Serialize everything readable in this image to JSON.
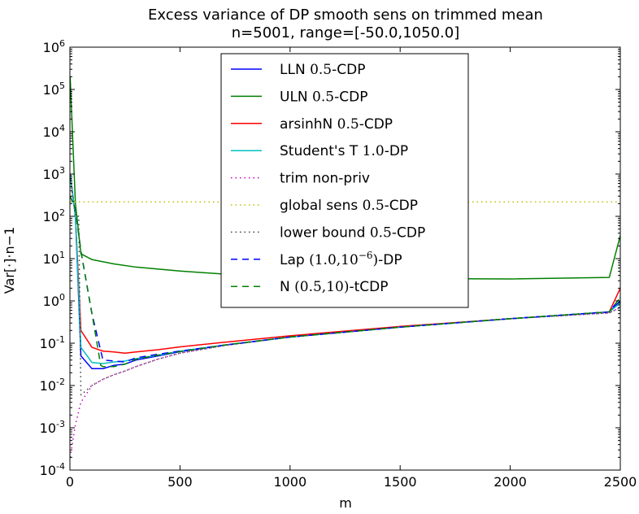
{
  "chart_data": {
    "type": "line",
    "title": "Excess variance of DP smooth sens on trimmed mean",
    "subtitle": "n=5001, range=[-50.0,1050.0]",
    "xlabel": "m",
    "ylabel": "Var[·]·n−1",
    "xlim": [
      0,
      2500
    ],
    "ylim": [
      0.0001,
      1000000
    ],
    "yscale": "log",
    "grid": false,
    "legend_position": "top-center",
    "xticks": [
      {
        "value": 0,
        "label": "0"
      },
      {
        "value": 500,
        "label": "500"
      },
      {
        "value": 1000,
        "label": "1000"
      },
      {
        "value": 1500,
        "label": "1500"
      },
      {
        "value": 2000,
        "label": "2000"
      },
      {
        "value": 2500,
        "label": "2500"
      }
    ],
    "yticks": [
      {
        "value": 0.0001,
        "base": "10",
        "exp": "-4"
      },
      {
        "value": 0.001,
        "base": "10",
        "exp": "-3"
      },
      {
        "value": 0.01,
        "base": "10",
        "exp": "-2"
      },
      {
        "value": 0.1,
        "base": "10",
        "exp": "-1"
      },
      {
        "value": 1,
        "base": "10",
        "exp": "0"
      },
      {
        "value": 10,
        "base": "10",
        "exp": "1"
      },
      {
        "value": 100,
        "base": "10",
        "exp": "2"
      },
      {
        "value": 1000,
        "base": "10",
        "exp": "3"
      },
      {
        "value": 10000,
        "base": "10",
        "exp": "4"
      },
      {
        "value": 100000,
        "base": "10",
        "exp": "5"
      },
      {
        "value": 1000000,
        "base": "10",
        "exp": "6"
      }
    ],
    "series": [
      {
        "name": "LLN 0.5-CDP",
        "label_plain": "LLN ",
        "label_math": "0.5",
        "label_tail": "-CDP",
        "color": "#0000ff",
        "dash": "solid",
        "x": [
          1,
          25,
          50,
          100,
          150,
          200,
          250,
          300,
          400,
          500,
          700,
          1000,
          1500,
          2000,
          2450,
          2500
        ],
        "y": [
          1000,
          100,
          0.05,
          0.025,
          0.025,
          0.03,
          0.032,
          0.04,
          0.05,
          0.063,
          0.09,
          0.14,
          0.24,
          0.38,
          0.55,
          1.0
        ]
      },
      {
        "name": "ULN 0.5-CDP",
        "label_plain": "ULN ",
        "label_math": "0.5",
        "label_tail": "-CDP",
        "color": "#008000",
        "dash": "solid",
        "x": [
          1,
          25,
          50,
          100,
          200,
          300,
          500,
          700,
          1000,
          1500,
          2000,
          2450,
          2500
        ],
        "y": [
          200000,
          200,
          13,
          9.5,
          7.5,
          6.3,
          5.1,
          4.3,
          3.8,
          3.4,
          3.3,
          3.6,
          35
        ]
      },
      {
        "name": "arsinhN 0.5-CDP",
        "label_plain": "arsinhN ",
        "label_math": "0.5",
        "label_tail": "-CDP",
        "color": "#ff0000",
        "dash": "solid",
        "x": [
          1,
          25,
          50,
          100,
          150,
          200,
          250,
          300,
          400,
          500,
          700,
          1000,
          1500,
          2000,
          2450,
          2500
        ],
        "y": [
          1000,
          100,
          0.2,
          0.08,
          0.065,
          0.062,
          0.058,
          0.062,
          0.07,
          0.082,
          0.105,
          0.15,
          0.25,
          0.38,
          0.55,
          2.0
        ]
      },
      {
        "name": "Student's T 1.0-DP",
        "label_plain": "Student's T ",
        "label_math": "1.0",
        "label_tail": "-DP",
        "color": "#00bfbf",
        "dash": "solid",
        "x": [
          1,
          25,
          50,
          100,
          150,
          200,
          250,
          300,
          400,
          500,
          700,
          1000,
          1500,
          2000,
          2450,
          2500
        ],
        "y": [
          1000,
          100,
          0.08,
          0.035,
          0.033,
          0.036,
          0.038,
          0.043,
          0.052,
          0.065,
          0.09,
          0.14,
          0.24,
          0.38,
          0.55,
          0.9
        ]
      },
      {
        "name": "trim non-priv",
        "label_plain": "trim non-priv",
        "label_math": "",
        "label_tail": "",
        "color": "#bf00bf",
        "dash": "dot",
        "x": [
          1,
          25,
          50,
          100,
          150,
          200,
          250,
          300,
          400,
          500,
          700,
          1000,
          1500,
          2000,
          2450,
          2500
        ],
        "y": [
          0.0002,
          0.0012,
          0.004,
          0.01,
          0.014,
          0.018,
          0.022,
          0.028,
          0.042,
          0.058,
          0.088,
          0.14,
          0.24,
          0.38,
          0.52,
          0.7
        ]
      },
      {
        "name": "global sens 0.5-CDP",
        "label_plain": "global sens ",
        "label_math": "0.5",
        "label_tail": "-CDP",
        "color": "#bfbf00",
        "dash": "dot",
        "x": [
          0,
          2500
        ],
        "y": [
          220,
          220
        ]
      },
      {
        "name": "lower bound 0.5-CDP",
        "label_plain": "lower bound ",
        "label_math": "0.5",
        "label_tail": "-CDP",
        "color": "#404040",
        "dash": "dot",
        "x": [
          1,
          25,
          40,
          50,
          100,
          150,
          200,
          250,
          300,
          400,
          500,
          700,
          1000,
          1500,
          2000,
          2450,
          2500
        ],
        "y": [
          1000,
          100,
          100,
          0.006,
          0.01,
          0.014,
          0.018,
          0.022,
          0.028,
          0.042,
          0.058,
          0.088,
          0.14,
          0.24,
          0.38,
          0.52,
          0.7
        ]
      },
      {
        "name": "Lap (1.0,10^-6)-DP",
        "label_plain": "Lap ",
        "label_math": "(1.0,10",
        "label_sup": "−6",
        "label_math2": ")",
        "label_tail": "-DP",
        "color": "#0000ff",
        "dash": "dash",
        "x": [
          1,
          25,
          50,
          100,
          150,
          200,
          250,
          300,
          400,
          500,
          700,
          1000,
          1500,
          2000,
          2450,
          2500
        ],
        "y": [
          300,
          150,
          15,
          0.5,
          0.04,
          0.038,
          0.036,
          0.045,
          0.055,
          0.065,
          0.09,
          0.14,
          0.24,
          0.38,
          0.55,
          1.2
        ]
      },
      {
        "name": "N (0.5,10)-tCDP",
        "label_plain": "N ",
        "label_math": "(0.5,10)",
        "label_tail": "-tCDP",
        "color": "#008000",
        "dash": "dash",
        "x": [
          1,
          25,
          50,
          100,
          140,
          150,
          200,
          250,
          300,
          400,
          500,
          700,
          1000,
          1500,
          2000,
          2450,
          2500
        ],
        "y": [
          300,
          150,
          15,
          0.5,
          0.03,
          0.028,
          0.028,
          0.032,
          0.042,
          0.052,
          0.063,
          0.09,
          0.14,
          0.24,
          0.38,
          0.55,
          1.2
        ]
      }
    ]
  }
}
